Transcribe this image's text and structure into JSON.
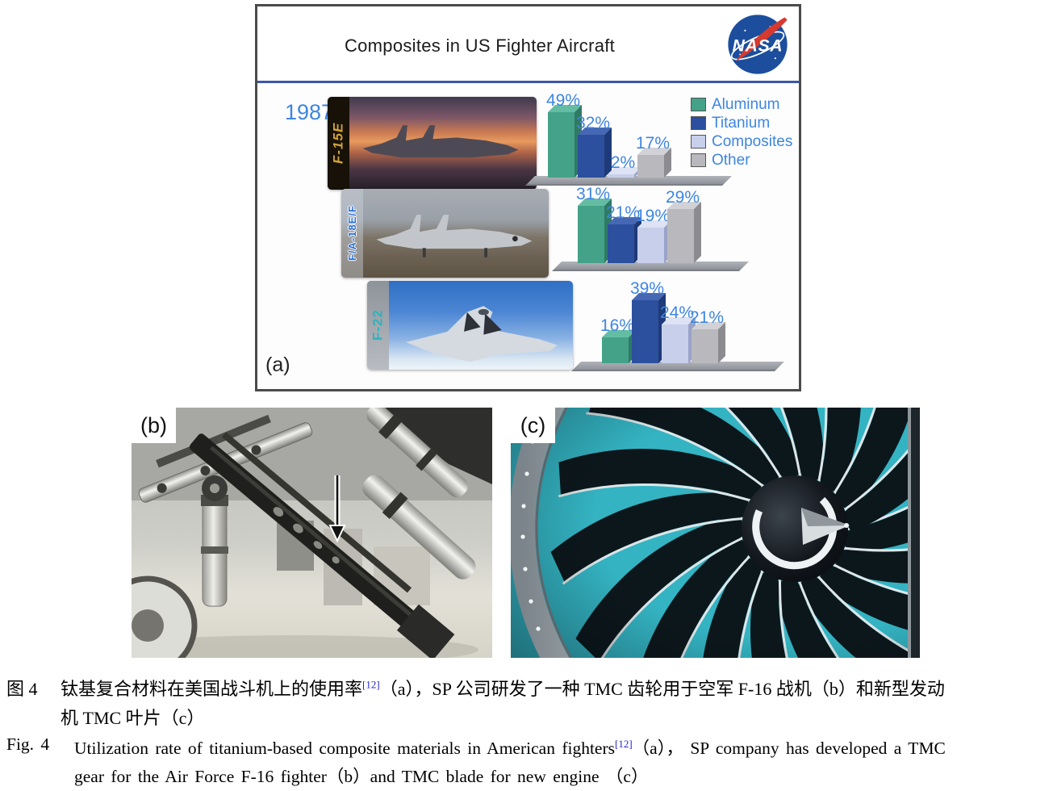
{
  "figure": {
    "panel_a": {
      "tag": "(a)",
      "title": "Composites in US Fighter Aircraft",
      "nasa": "NASA",
      "year": "1987",
      "legend": [
        {
          "label": "Aluminum",
          "color": "#44a288",
          "top": "#63bda2",
          "side": "#2f7a65"
        },
        {
          "label": "Titanium",
          "color": "#2c4f9e",
          "top": "#4668b4",
          "side": "#1f3a78"
        },
        {
          "label": "Composites",
          "color": "#c8cfeb",
          "top": "#dde2f4",
          "side": "#9aa3c8"
        },
        {
          "label": "Other",
          "color": "#b9b9bd",
          "top": "#d2d2d6",
          "side": "#8c8c90"
        }
      ],
      "aircraft": [
        {
          "name": "F-15E"
        },
        {
          "name": "F/A-18E/F"
        },
        {
          "name": "F-22"
        }
      ]
    },
    "panel_b": {
      "tag": "(b)"
    },
    "panel_c": {
      "tag": "(c)"
    }
  },
  "chart_data": {
    "type": "bar",
    "title": "Composites in US Fighter Aircraft",
    "categories": [
      "Aluminum",
      "Titanium",
      "Composites",
      "Other"
    ],
    "unit": "%",
    "series": [
      {
        "name": "F-15E",
        "year": "1987",
        "values": [
          49,
          32,
          2,
          17
        ]
      },
      {
        "name": "F/A-18E/F",
        "values": [
          31,
          21,
          19,
          29
        ]
      },
      {
        "name": "F-22",
        "values": [
          16,
          39,
          24,
          21
        ]
      }
    ],
    "colors": [
      "#44a288",
      "#2c4f9e",
      "#c8cfeb",
      "#b9b9bd"
    ],
    "label_color": "#3e86e0",
    "legend_position": "top-right",
    "style": "3d-bars-with-gray-base-platform"
  },
  "captions": {
    "zh": {
      "fig": "图 4",
      "line1a": "钛基复合材料在美国战斗机上的使用率",
      "ref": "[12]",
      "line1b": "（a），SP 公司研发了一种 TMC 齿轮用于空军 F-16 战机（b）和新型发动",
      "line2": "机 TMC 叶片（c）"
    },
    "en": {
      "fig": "Fig. 4",
      "line1a": "Utilization rate of titanium-based composite materials in American fighters",
      "ref": "[12]",
      "line1b": "（a）， SP company has developed a TMC",
      "line2": "gear for the Air Force F-16 fighter（b）and TMC blade for new engine （c）"
    }
  }
}
